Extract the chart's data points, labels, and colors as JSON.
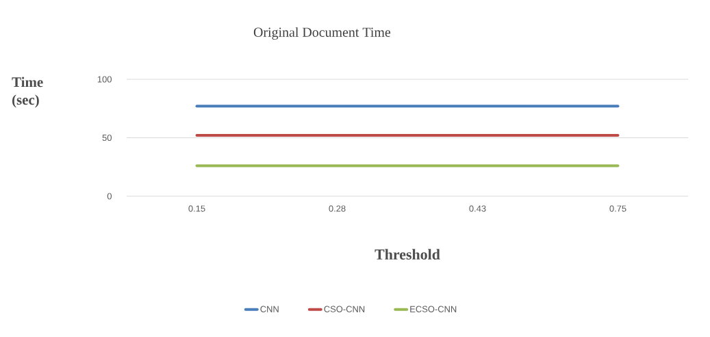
{
  "chart_data": {
    "type": "line",
    "title": "Original Document Time",
    "xlabel": "Threshold",
    "ylabel": "Time (sec)",
    "categories": [
      "0.15",
      "0.28",
      "0.43",
      "0.75"
    ],
    "series": [
      {
        "name": "CNN",
        "color": "#4a7ebb",
        "values": [
          77,
          77,
          77,
          77
        ]
      },
      {
        "name": "CSO-CNN",
        "color": "#be4b48",
        "values": [
          52,
          52,
          52,
          52
        ]
      },
      {
        "name": "ECSO-CNN",
        "color": "#98b954",
        "values": [
          26,
          26,
          26,
          26
        ]
      }
    ],
    "ylim": [
      0,
      100
    ],
    "yticks": [
      0,
      50,
      100
    ],
    "grid": "y",
    "legend": "bottom",
    "marker": "none",
    "line_style": "solid"
  }
}
